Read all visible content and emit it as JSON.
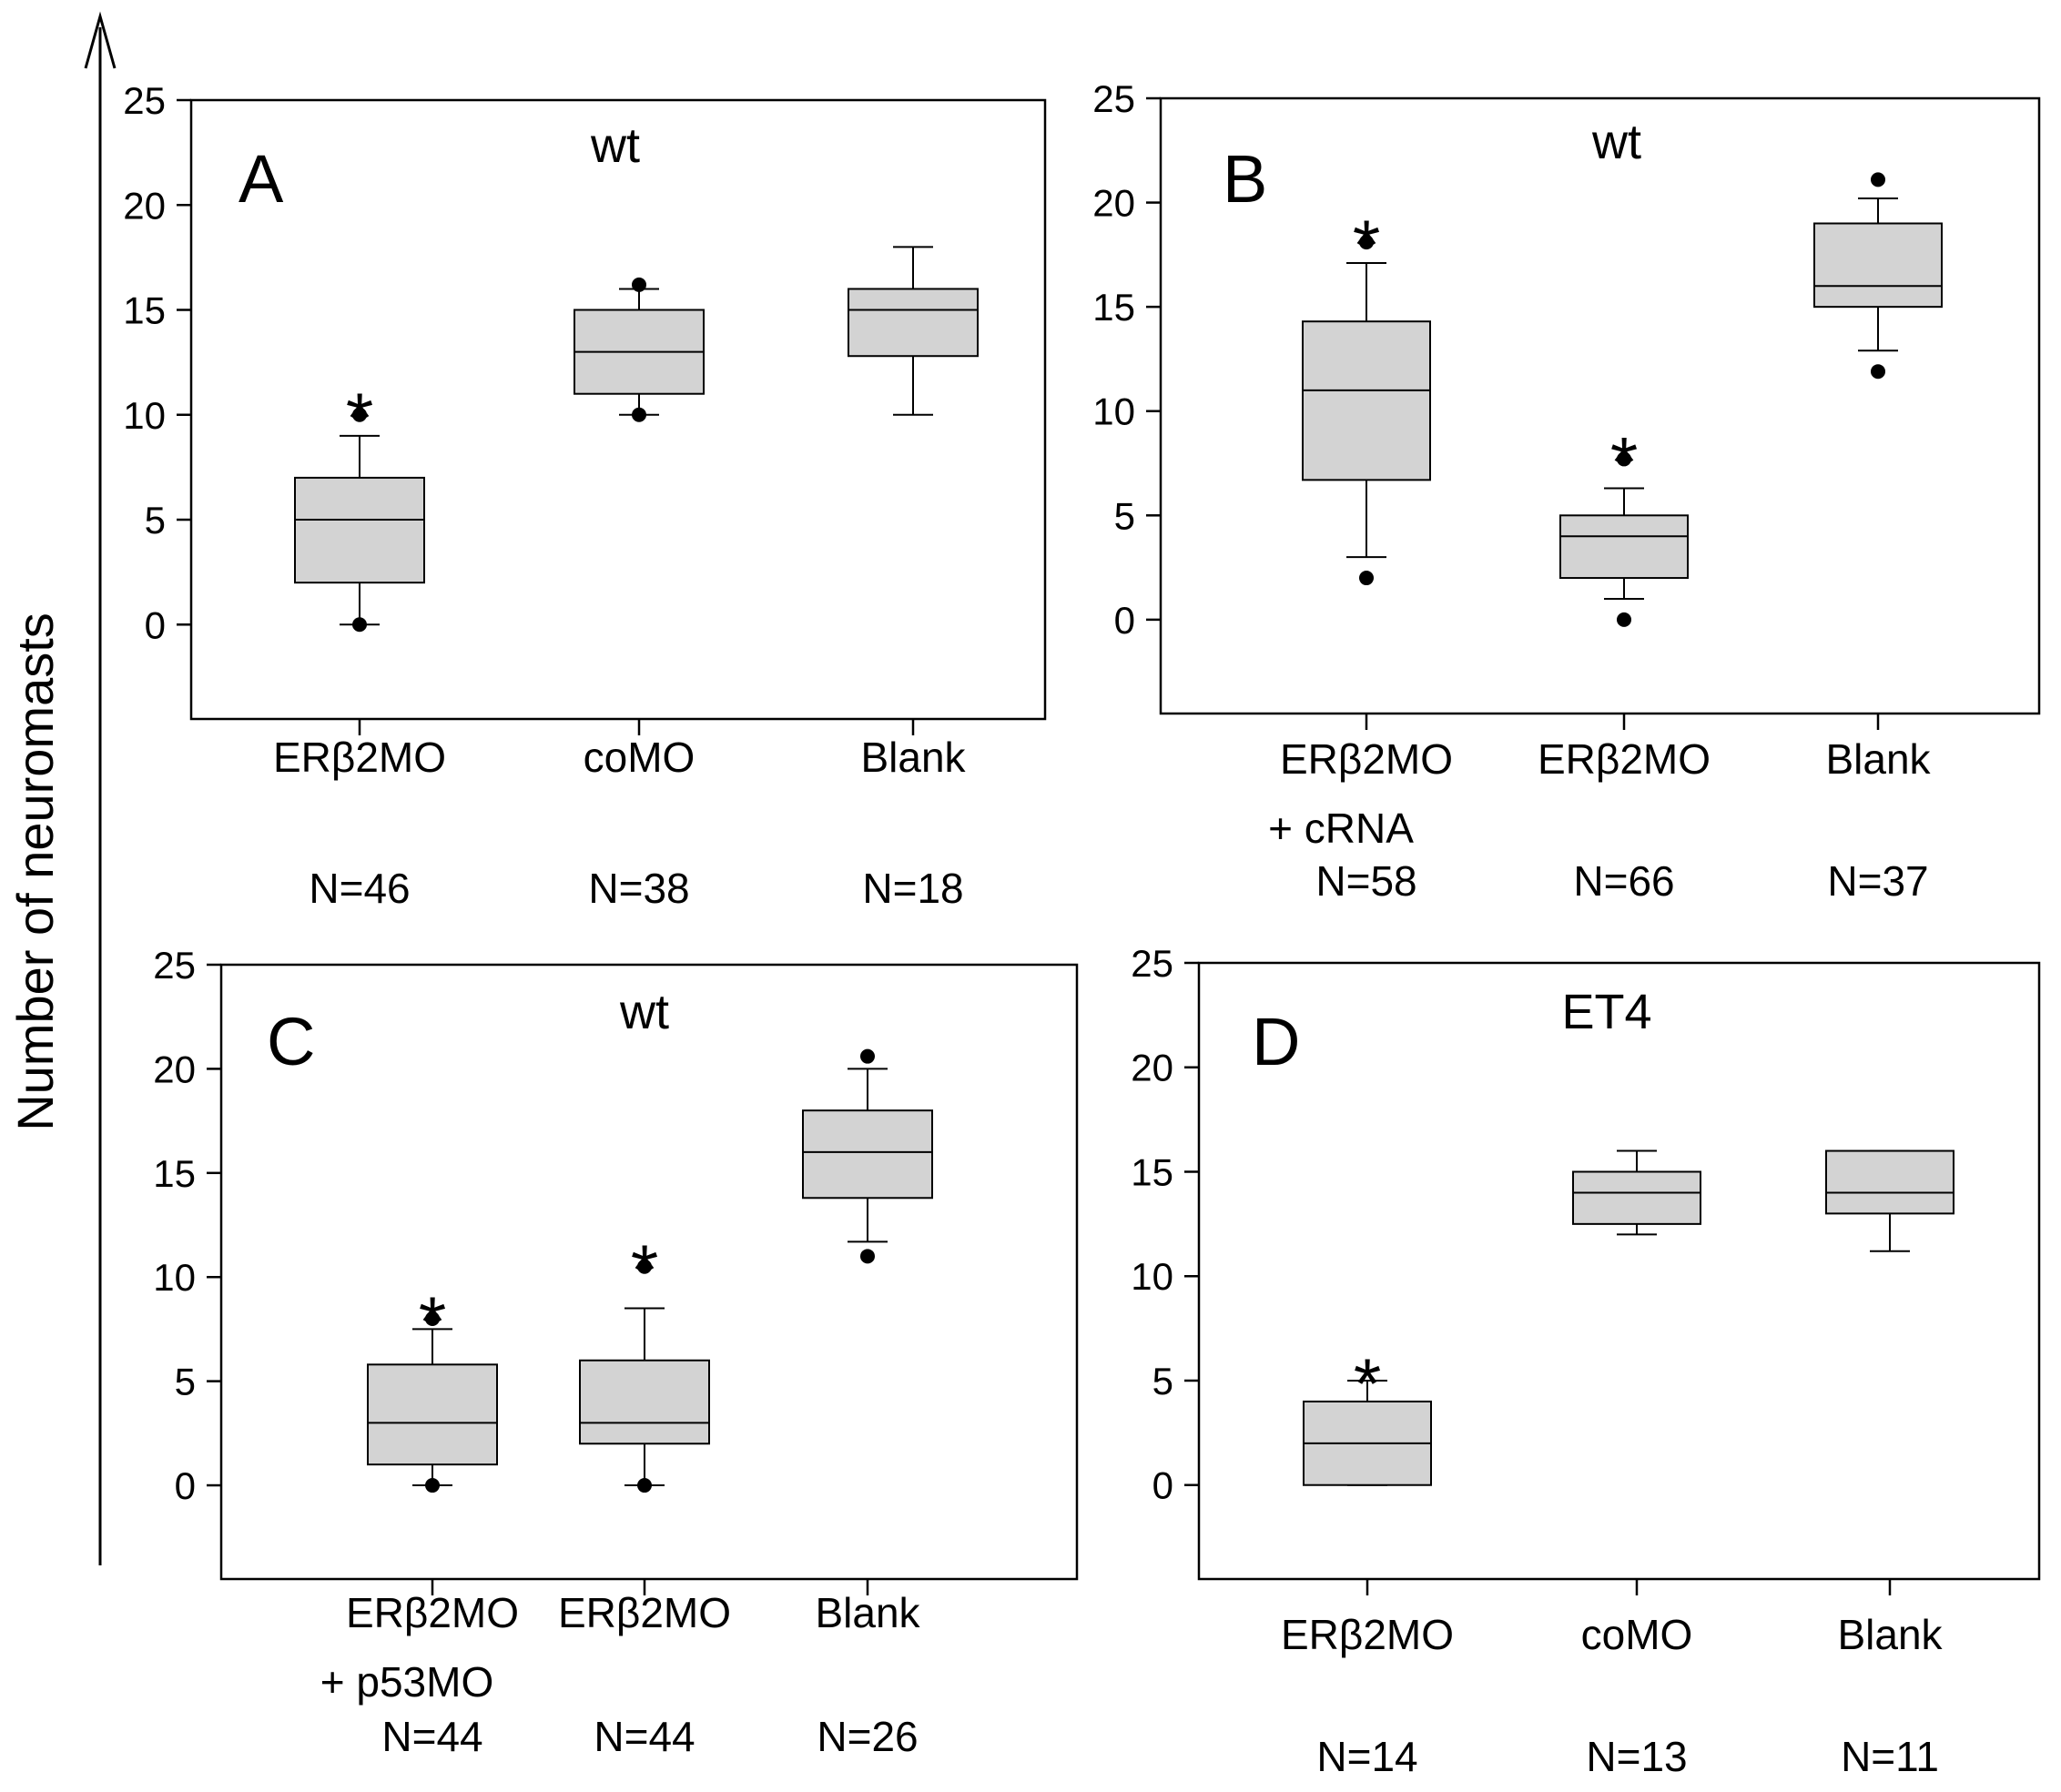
{
  "figure": {
    "ylabel": "Number of neuromasts",
    "box_fill": "#d3d3d3",
    "line_color": "#000000"
  },
  "chart_data": [
    {
      "type": "box",
      "panel": "A",
      "title": "wt",
      "ylim": [
        -4.5,
        25
      ],
      "yticks": [
        0,
        5,
        10,
        15,
        20,
        25
      ],
      "categories": [
        {
          "label": "ERβ2MO",
          "n": "N=46",
          "q1": 2,
          "median": 5,
          "q3": 7,
          "whisker_low": 0,
          "whisker_high": 9,
          "outliers": [
            0,
            10
          ],
          "significant": true
        },
        {
          "label": "coMO",
          "n": "N=38",
          "q1": 11,
          "median": 13,
          "q3": 15,
          "whisker_low": 10,
          "whisker_high": 16,
          "outliers": [
            10,
            16.2
          ],
          "significant": false
        },
        {
          "label": "Blank",
          "n": "N=18",
          "q1": 12.8,
          "median": 15,
          "q3": 16,
          "whisker_low": 10,
          "whisker_high": 18,
          "outliers": [],
          "significant": false
        }
      ]
    },
    {
      "type": "box",
      "panel": "B",
      "title": "wt",
      "ylim": [
        -4.5,
        25
      ],
      "yticks": [
        0,
        5,
        10,
        15,
        20,
        25
      ],
      "categories": [
        {
          "label": "ERβ2MO",
          "label2": "+ cRNA",
          "n": "N=58",
          "q1": 6.7,
          "median": 11,
          "q3": 14.3,
          "whisker_low": 3,
          "whisker_high": 17.1,
          "outliers": [
            2,
            18.1
          ],
          "significant": true
        },
        {
          "label": "ERβ2MO",
          "n": "N=66",
          "q1": 2,
          "median": 4,
          "q3": 5,
          "whisker_low": 1,
          "whisker_high": 6.3,
          "outliers": [
            0,
            7.7
          ],
          "significant": true
        },
        {
          "label": "Blank",
          "n": "N=37",
          "q1": 15,
          "median": 16,
          "q3": 19,
          "whisker_low": 12.9,
          "whisker_high": 20.2,
          "outliers": [
            11.9,
            21.1
          ],
          "significant": false
        }
      ]
    },
    {
      "type": "box",
      "panel": "C",
      "title": "wt",
      "ylim": [
        -4.5,
        25
      ],
      "yticks": [
        0,
        5,
        10,
        15,
        20,
        25
      ],
      "categories": [
        {
          "label": "ERβ2MO",
          "label2": "+ p53MO",
          "n": "N=44",
          "q1": 1,
          "median": 3,
          "q3": 5.8,
          "whisker_low": 0,
          "whisker_high": 7.5,
          "outliers": [
            0,
            8
          ],
          "significant": true
        },
        {
          "label": "ERβ2MO",
          "n": "N=44",
          "q1": 2,
          "median": 3,
          "q3": 6,
          "whisker_low": 0,
          "whisker_high": 8.5,
          "outliers": [
            0,
            10.5
          ],
          "significant": true
        },
        {
          "label": "Blank",
          "n": "N=26",
          "q1": 13.8,
          "median": 16,
          "q3": 18,
          "whisker_low": 11.7,
          "whisker_high": 20,
          "outliers": [
            11,
            20.6
          ],
          "significant": false
        }
      ]
    },
    {
      "type": "box",
      "panel": "D",
      "title": "ET4",
      "ylim": [
        -4.5,
        25
      ],
      "yticks": [
        0,
        5,
        10,
        15,
        20,
        25
      ],
      "categories": [
        {
          "label": "ERβ2MO",
          "n": "N=14",
          "q1": 0,
          "median": 2,
          "q3": 4,
          "whisker_low": 0,
          "whisker_high": 5,
          "outliers": [],
          "significant": true
        },
        {
          "label": "coMO",
          "n": "N=13",
          "q1": 12.5,
          "median": 14,
          "q3": 15,
          "whisker_low": 12,
          "whisker_high": 16,
          "outliers": [],
          "significant": false
        },
        {
          "label": "Blank",
          "n": "N=11",
          "q1": 13,
          "median": 14,
          "q3": 16,
          "whisker_low": 11.2,
          "whisker_high": 16,
          "outliers": [],
          "significant": false
        }
      ]
    }
  ]
}
